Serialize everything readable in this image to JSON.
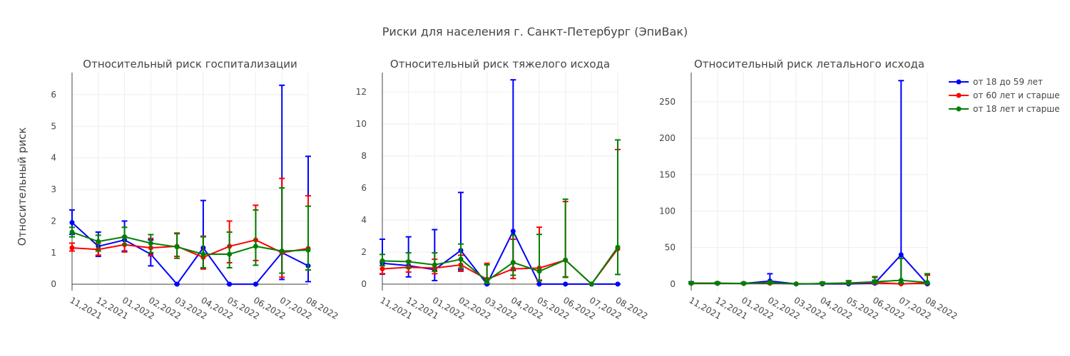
{
  "figure": {
    "title": "Риски для населения г. Санкт-Петербург (ЭпиВак)",
    "ylabel": "Относительный риск"
  },
  "legend": {
    "placement": "top-right",
    "items": [
      {
        "label": "от 18 до 59 лет",
        "color": "#0000ff"
      },
      {
        "label": "от 60 лет и старше",
        "color": "#ff0000"
      },
      {
        "label": "от 18 лет и старше",
        "color": "#008000"
      }
    ]
  },
  "chart_data": [
    {
      "type": "line",
      "title": "Относительный риск госпитализации",
      "categories": [
        "11,2021",
        "12,2021",
        "01,2022",
        "02,2022",
        "03,2022",
        "04,2022",
        "05,2022",
        "06,2022",
        "07,2022",
        "08,2022"
      ],
      "ylim": [
        -0.2,
        6.7
      ],
      "yticks": [
        0,
        1,
        2,
        3,
        4,
        5,
        6
      ],
      "grid": true,
      "series": [
        {
          "name": "от 18 до 59 лет",
          "color": "#0000ff",
          "values": [
            1.95,
            1.2,
            1.4,
            0.95,
            0.0,
            1.15,
            0.0,
            0.0,
            1.0,
            0.58
          ],
          "lower": [
            1.58,
            0.88,
            1.05,
            0.58,
            0.0,
            0.5,
            0.0,
            0.0,
            0.15,
            0.08
          ],
          "upper": [
            2.35,
            1.65,
            2.0,
            1.4,
            0.0,
            2.65,
            0.0,
            0.0,
            6.3,
            4.05
          ]
        },
        {
          "name": "от 60 лет и старше",
          "color": "#ff0000",
          "values": [
            1.15,
            1.1,
            1.25,
            1.15,
            1.2,
            0.85,
            1.2,
            1.4,
            1.0,
            1.13
          ],
          "lower": [
            1.05,
            0.92,
            1.02,
            0.9,
            0.88,
            0.48,
            0.68,
            0.75,
            0.22,
            0.45
          ],
          "upper": [
            1.3,
            1.3,
            1.5,
            1.45,
            1.62,
            1.52,
            2.0,
            2.5,
            3.35,
            2.8
          ]
        },
        {
          "name": "от 18 лет и старше",
          "color": "#008000",
          "values": [
            1.65,
            1.35,
            1.5,
            1.3,
            1.18,
            0.95,
            0.95,
            1.2,
            1.05,
            1.08
          ],
          "lower": [
            1.5,
            1.05,
            1.25,
            1.0,
            0.82,
            0.52,
            0.52,
            0.6,
            0.35,
            0.45
          ],
          "upper": [
            1.8,
            1.55,
            1.8,
            1.57,
            1.6,
            1.5,
            1.65,
            2.35,
            3.05,
            2.47
          ]
        }
      ]
    },
    {
      "type": "line",
      "title": "Относительный риск тяжелого исхода",
      "categories": [
        "11,2021",
        "12,2021",
        "01,2022",
        "02,2022",
        "03,2022",
        "04,2022",
        "05,2022",
        "06,2022",
        "07,2022",
        "08,2022"
      ],
      "ylim": [
        -0.4,
        13.2
      ],
      "yticks": [
        0,
        2,
        4,
        6,
        8,
        10,
        12
      ],
      "grid": true,
      "series": [
        {
          "name": "от 18 до 59 лет",
          "color": "#0000ff",
          "values": [
            1.3,
            1.15,
            0.9,
            2.1,
            0.0,
            3.3,
            0.0,
            0.0,
            0.0,
            0.0
          ],
          "lower": [
            0.62,
            0.45,
            0.22,
            0.9,
            0.0,
            0.85,
            0.0,
            0.0,
            0.0,
            0.0
          ],
          "upper": [
            2.8,
            2.95,
            3.4,
            5.72,
            0.0,
            12.75,
            0.0,
            0.0,
            0.0,
            0.0
          ]
        },
        {
          "name": "от 60 лет и старше",
          "color": "#ff0000",
          "values": [
            0.95,
            1.05,
            1.0,
            1.2,
            0.3,
            0.95,
            1.0,
            1.5,
            0.0,
            2.2
          ],
          "lower": [
            0.65,
            0.75,
            0.65,
            0.8,
            0.05,
            0.35,
            0.25,
            0.45,
            0.0,
            0.6
          ],
          "upper": [
            1.4,
            1.45,
            1.55,
            1.8,
            1.3,
            2.8,
            3.55,
            5.15,
            0.0,
            8.4
          ]
        },
        {
          "name": "от 18 лет и старше",
          "color": "#008000",
          "values": [
            1.45,
            1.4,
            1.2,
            1.55,
            0.2,
            1.35,
            0.8,
            1.5,
            0.0,
            2.3
          ],
          "lower": [
            1.15,
            1.0,
            0.8,
            1.0,
            0.05,
            0.55,
            0.2,
            0.42,
            0.0,
            0.6
          ],
          "upper": [
            1.85,
            1.95,
            1.95,
            2.5,
            1.2,
            3.05,
            3.1,
            5.3,
            0.0,
            9.0
          ]
        }
      ]
    },
    {
      "type": "line",
      "title": "Относительный риск летального исхода",
      "categories": [
        "11,2021",
        "12,2021",
        "01,2022",
        "02,2022",
        "03,2022",
        "04,2022",
        "05,2022",
        "06,2022",
        "07,2022",
        "08,2022"
      ],
      "ylim": [
        -9,
        290
      ],
      "yticks": [
        0,
        50,
        100,
        150,
        200,
        250
      ],
      "grid": true,
      "series": [
        {
          "name": "от 18 до 59 лет",
          "color": "#0000ff",
          "values": [
            1.0,
            0.8,
            0.6,
            4.0,
            0.0,
            0.0,
            0.0,
            1.0,
            40.0,
            0.0
          ],
          "lower": [
            0.2,
            0.2,
            0.1,
            0.3,
            0.0,
            0.0,
            0.0,
            0.0,
            1.5,
            0.0
          ],
          "upper": [
            3.0,
            2.0,
            2.0,
            14.0,
            0.0,
            0.0,
            0.0,
            5.0,
            279.0,
            0.0
          ]
        },
        {
          "name": "от 60 лет и старше",
          "color": "#ff0000",
          "values": [
            0.9,
            1.0,
            0.7,
            1.0,
            0.0,
            0.5,
            1.0,
            2.0,
            0.0,
            1.5
          ],
          "lower": [
            0.3,
            0.5,
            0.3,
            0.3,
            0.0,
            0.0,
            0.2,
            0.3,
            0.0,
            0.2
          ],
          "upper": [
            2.0,
            2.0,
            1.5,
            3.0,
            0.0,
            2.0,
            4.0,
            9.0,
            0.0,
            12.0
          ]
        },
        {
          "name": "от 18 лет и старше",
          "color": "#008000",
          "values": [
            1.0,
            1.0,
            0.8,
            1.5,
            0.0,
            0.6,
            1.2,
            3.0,
            5.0,
            2.0
          ],
          "lower": [
            0.4,
            0.5,
            0.3,
            0.4,
            0.0,
            0.1,
            0.2,
            0.4,
            0.5,
            0.3
          ],
          "upper": [
            2.5,
            2.5,
            2.0,
            4.0,
            0.0,
            2.5,
            4.5,
            10.0,
            35.0,
            14.0
          ]
        }
      ]
    }
  ]
}
